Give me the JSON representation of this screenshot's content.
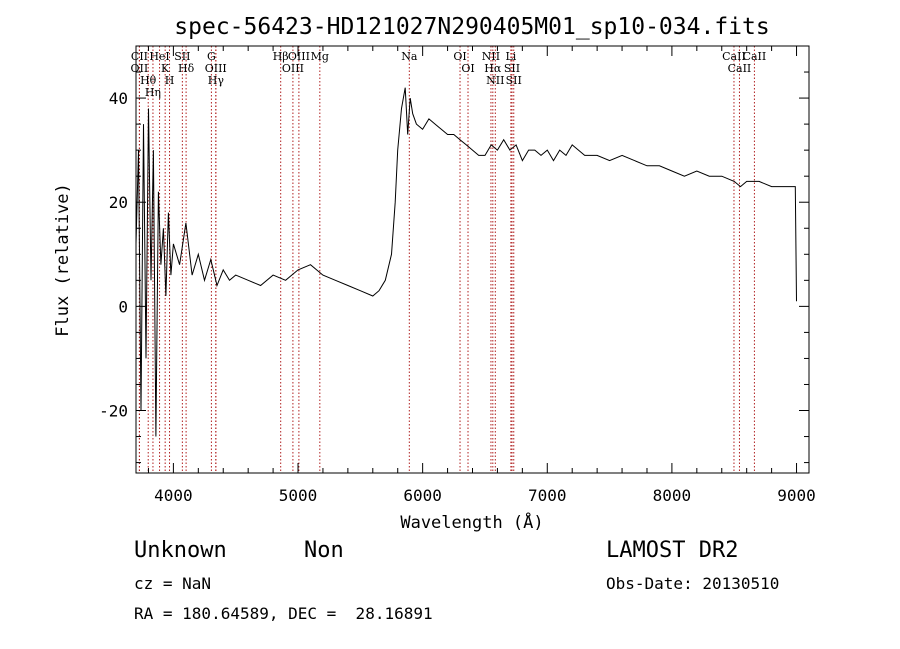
{
  "chart_data": {
    "type": "line",
    "title": "spec-56423-HD121027N290405M01_sp10-034.fits",
    "xlabel": "Wavelength (Å)",
    "ylabel": "Flux (relative)",
    "xlim": [
      3700,
      9100
    ],
    "ylim": [
      -32,
      50
    ],
    "xticks": [
      4000,
      5000,
      6000,
      7000,
      8000,
      9000
    ],
    "yticks": [
      -20,
      0,
      20,
      40
    ],
    "grid": false,
    "series": [
      {
        "x": [
          3700,
          3720,
          3740,
          3760,
          3780,
          3800,
          3820,
          3840,
          3860,
          3880,
          3900,
          3920,
          3940,
          3960,
          3980,
          4000,
          4050,
          4100,
          4150,
          4200,
          4250,
          4300,
          4350,
          4400,
          4450,
          4500,
          4600,
          4700,
          4800,
          4900,
          5000,
          5100,
          5200,
          5300,
          5400,
          5500,
          5600,
          5650,
          5700,
          5750,
          5780,
          5800,
          5830,
          5860,
          5880,
          5900,
          5920,
          5950,
          6000,
          6050,
          6100,
          6150,
          6200,
          6250,
          6300,
          6350,
          6400,
          6450,
          6500,
          6550,
          6600,
          6650,
          6700,
          6750,
          6800,
          6850,
          6900,
          6950,
          7000,
          7050,
          7100,
          7150,
          7200,
          7300,
          7400,
          7500,
          7600,
          7700,
          7800,
          7900,
          8000,
          8100,
          8200,
          8300,
          8400,
          8500,
          8550,
          8600,
          8700,
          8800,
          8900,
          8950,
          8990,
          9000
        ],
        "y": [
          12,
          30,
          -20,
          35,
          -10,
          38,
          5,
          30,
          -25,
          22,
          8,
          15,
          2,
          18,
          6,
          12,
          8,
          16,
          6,
          10,
          5,
          9,
          4,
          7,
          5,
          6,
          5,
          4,
          6,
          5,
          7,
          8,
          6,
          5,
          4,
          3,
          2,
          3,
          5,
          10,
          20,
          30,
          38,
          42,
          33,
          40,
          37,
          35,
          34,
          36,
          35,
          34,
          33,
          33,
          32,
          31,
          30,
          29,
          29,
          31,
          30,
          32,
          30,
          31,
          28,
          30,
          30,
          29,
          30,
          28,
          30,
          29,
          31,
          29,
          29,
          28,
          29,
          28,
          27,
          27,
          26,
          25,
          26,
          25,
          25,
          24,
          23,
          24,
          24,
          23,
          23,
          23,
          23,
          1
        ]
      }
    ],
    "line_markers": [
      {
        "label": "CII",
        "x": 3728
      },
      {
        "label": "OII",
        "x": 3727
      },
      {
        "label": "Hθ",
        "x": 3798
      },
      {
        "label": "Hη",
        "x": 3836
      },
      {
        "label": "HeI",
        "x": 3889
      },
      {
        "label": "K",
        "x": 3934
      },
      {
        "label": "H",
        "x": 3969
      },
      {
        "label": "SII",
        "x": 4072
      },
      {
        "label": "Hδ",
        "x": 4102
      },
      {
        "label": "G",
        "x": 4305
      },
      {
        "label": "OIII",
        "x": 4340
      },
      {
        "label": "Hγ",
        "x": 4341
      },
      {
        "label": "Hβ",
        "x": 4861
      },
      {
        "label": "OIII",
        "x": 4959
      },
      {
        "label": "OIII",
        "x": 5007
      },
      {
        "label": "Mg",
        "x": 5175
      },
      {
        "label": "Na",
        "x": 5893
      },
      {
        "label": "OI",
        "x": 6300
      },
      {
        "label": "OI",
        "x": 6364
      },
      {
        "label": "NII",
        "x": 6548
      },
      {
        "label": "Hα",
        "x": 6563
      },
      {
        "label": "NII",
        "x": 6583
      },
      {
        "label": "Li",
        "x": 6708
      },
      {
        "label": "SII",
        "x": 6717
      },
      {
        "label": "SII",
        "x": 6731
      },
      {
        "label": "CaII",
        "x": 8498
      },
      {
        "label": "CaII",
        "x": 8542
      },
      {
        "label": "CaII",
        "x": 8662
      }
    ]
  },
  "info": {
    "object_class": "Unknown",
    "object_subclass": "Non",
    "survey": "LAMOST DR2",
    "cz": "cz = NaN",
    "obs_date": "Obs-Date: 20130510",
    "coords": "RA = 180.64589, DEC =  28.16891"
  },
  "colors": {
    "line_marker": "#b02020",
    "spectrum": "#000000",
    "axes": "#000000"
  }
}
